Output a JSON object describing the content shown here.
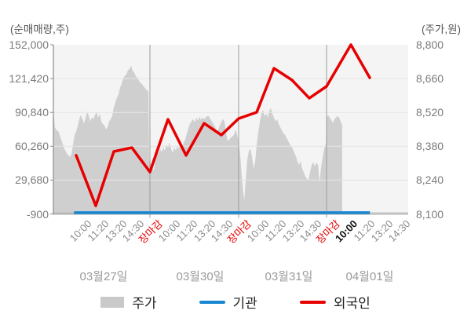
{
  "axes": {
    "left_title": "(순매매량,주)",
    "right_title": "(주가,원)",
    "left_ticks": [
      "152,000",
      "121,420",
      "90,840",
      "60,260",
      "29,680",
      "-900"
    ],
    "right_ticks": [
      "8,800",
      "8,660",
      "8,520",
      "8,380",
      "8,240",
      "8,100"
    ]
  },
  "x_axis": {
    "days": [
      {
        "date": "03월27일",
        "times": [
          "10:00",
          "11:20",
          "13:20",
          "14:30",
          "장마감"
        ]
      },
      {
        "date": "03월30일",
        "times": [
          "10:00",
          "11:20",
          "13:20",
          "14:30",
          "장마감"
        ]
      },
      {
        "date": "03월31일",
        "times": [
          "10:00",
          "11:20",
          "13:20",
          "14:30",
          "장마감"
        ]
      },
      {
        "date": "04월01일",
        "times": [
          "10:00",
          "11:20",
          "13:20",
          "14:30"
        ],
        "bold_time": "10:00"
      }
    ]
  },
  "legend": {
    "items": [
      {
        "label": "주가",
        "type": "area",
        "color": "#c9c9c9"
      },
      {
        "label": "기관",
        "type": "line",
        "color": "#1787d2"
      },
      {
        "label": "외국인",
        "type": "line",
        "color": "#e60000"
      }
    ]
  },
  "chart_data": {
    "type": "mixed",
    "grid": true,
    "left_axis": {
      "label": "(순매매량,주)",
      "unit": "주",
      "range": [
        -900,
        152000
      ],
      "ticks": [
        152000,
        121420,
        90840,
        60260,
        29680,
        -900
      ]
    },
    "right_axis": {
      "label": "(주가,원)",
      "unit": "원",
      "range": [
        8100,
        8800
      ],
      "ticks": [
        8800,
        8660,
        8520,
        8380,
        8240,
        8100
      ]
    },
    "day_boundaries_x": [
      0.2721,
      0.5221,
      0.7699
    ],
    "series": [
      {
        "name": "주가",
        "type": "area",
        "axis": "right",
        "color": "#cfcfcf",
        "points": [
          [
            0.0,
            8500
          ],
          [
            0.002,
            8505
          ],
          [
            0.004,
            8460
          ],
          [
            0.009,
            8447
          ],
          [
            0.015,
            8440
          ],
          [
            0.022,
            8408
          ],
          [
            0.031,
            8369
          ],
          [
            0.04,
            8346
          ],
          [
            0.046,
            8336
          ],
          [
            0.051,
            8346
          ],
          [
            0.055,
            8385
          ],
          [
            0.06,
            8427
          ],
          [
            0.064,
            8440
          ],
          [
            0.069,
            8466
          ],
          [
            0.073,
            8492
          ],
          [
            0.077,
            8509
          ],
          [
            0.082,
            8492
          ],
          [
            0.086,
            8473
          ],
          [
            0.091,
            8499
          ],
          [
            0.095,
            8522
          ],
          [
            0.1,
            8505
          ],
          [
            0.104,
            8483
          ],
          [
            0.108,
            8499
          ],
          [
            0.113,
            8492
          ],
          [
            0.117,
            8509
          ],
          [
            0.122,
            8522
          ],
          [
            0.126,
            8499
          ],
          [
            0.131,
            8515
          ],
          [
            0.135,
            8483
          ],
          [
            0.139,
            8473
          ],
          [
            0.144,
            8466
          ],
          [
            0.148,
            8450
          ],
          [
            0.153,
            8460
          ],
          [
            0.157,
            8483
          ],
          [
            0.162,
            8492
          ],
          [
            0.166,
            8505
          ],
          [
            0.17,
            8538
          ],
          [
            0.175,
            8564
          ],
          [
            0.179,
            8580
          ],
          [
            0.184,
            8597
          ],
          [
            0.188,
            8623
          ],
          [
            0.192,
            8636
          ],
          [
            0.197,
            8662
          ],
          [
            0.201,
            8671
          ],
          [
            0.206,
            8678
          ],
          [
            0.21,
            8694
          ],
          [
            0.215,
            8701
          ],
          [
            0.219,
            8714
          ],
          [
            0.223,
            8694
          ],
          [
            0.228,
            8684
          ],
          [
            0.232,
            8671
          ],
          [
            0.237,
            8662
          ],
          [
            0.241,
            8652
          ],
          [
            0.246,
            8642
          ],
          [
            0.25,
            8636
          ],
          [
            0.254,
            8629
          ],
          [
            0.259,
            8619
          ],
          [
            0.263,
            8613
          ],
          [
            0.268,
            8606
          ],
          [
            0.27,
            8320
          ],
          [
            0.274,
            8310
          ],
          [
            0.279,
            8294
          ],
          [
            0.283,
            8277
          ],
          [
            0.288,
            8336
          ],
          [
            0.292,
            8359
          ],
          [
            0.296,
            8349
          ],
          [
            0.301,
            8369
          ],
          [
            0.305,
            8356
          ],
          [
            0.31,
            8375
          ],
          [
            0.314,
            8362
          ],
          [
            0.319,
            8385
          ],
          [
            0.323,
            8375
          ],
          [
            0.327,
            8395
          ],
          [
            0.332,
            8369
          ],
          [
            0.336,
            8352
          ],
          [
            0.341,
            8375
          ],
          [
            0.345,
            8362
          ],
          [
            0.35,
            8382
          ],
          [
            0.354,
            8369
          ],
          [
            0.358,
            8388
          ],
          [
            0.363,
            8375
          ],
          [
            0.367,
            8395
          ],
          [
            0.372,
            8408
          ],
          [
            0.376,
            8434
          ],
          [
            0.381,
            8457
          ],
          [
            0.385,
            8473
          ],
          [
            0.389,
            8483
          ],
          [
            0.394,
            8492
          ],
          [
            0.398,
            8479
          ],
          [
            0.403,
            8499
          ],
          [
            0.407,
            8486
          ],
          [
            0.412,
            8502
          ],
          [
            0.416,
            8489
          ],
          [
            0.42,
            8499
          ],
          [
            0.425,
            8492
          ],
          [
            0.429,
            8499
          ],
          [
            0.434,
            8505
          ],
          [
            0.438,
            8505
          ],
          [
            0.442,
            8492
          ],
          [
            0.447,
            8483
          ],
          [
            0.451,
            8473
          ],
          [
            0.456,
            8460
          ],
          [
            0.46,
            8440
          ],
          [
            0.465,
            8450
          ],
          [
            0.469,
            8466
          ],
          [
            0.473,
            8479
          ],
          [
            0.478,
            8492
          ],
          [
            0.482,
            8483
          ],
          [
            0.487,
            8434
          ],
          [
            0.491,
            8401
          ],
          [
            0.496,
            8408
          ],
          [
            0.5,
            8414
          ],
          [
            0.504,
            8421
          ],
          [
            0.509,
            8427
          ],
          [
            0.513,
            8450
          ],
          [
            0.518,
            8427
          ],
          [
            0.522,
            8401
          ],
          [
            0.527,
            8336
          ],
          [
            0.531,
            8255
          ],
          [
            0.535,
            8190
          ],
          [
            0.538,
            8157
          ],
          [
            0.542,
            8238
          ],
          [
            0.546,
            8320
          ],
          [
            0.551,
            8362
          ],
          [
            0.555,
            8369
          ],
          [
            0.56,
            8336
          ],
          [
            0.564,
            8287
          ],
          [
            0.569,
            8320
          ],
          [
            0.573,
            8385
          ],
          [
            0.577,
            8434
          ],
          [
            0.582,
            8483
          ],
          [
            0.586,
            8515
          ],
          [
            0.591,
            8531
          ],
          [
            0.595,
            8505
          ],
          [
            0.6,
            8515
          ],
          [
            0.604,
            8499
          ],
          [
            0.608,
            8525
          ],
          [
            0.613,
            8538
          ],
          [
            0.617,
            8515
          ],
          [
            0.622,
            8499
          ],
          [
            0.626,
            8483
          ],
          [
            0.631,
            8492
          ],
          [
            0.635,
            8473
          ],
          [
            0.639,
            8460
          ],
          [
            0.644,
            8447
          ],
          [
            0.648,
            8434
          ],
          [
            0.653,
            8427
          ],
          [
            0.657,
            8414
          ],
          [
            0.662,
            8401
          ],
          [
            0.666,
            8388
          ],
          [
            0.67,
            8382
          ],
          [
            0.675,
            8369
          ],
          [
            0.679,
            8352
          ],
          [
            0.684,
            8336
          ],
          [
            0.688,
            8316
          ],
          [
            0.693,
            8303
          ],
          [
            0.697,
            8320
          ],
          [
            0.701,
            8287
          ],
          [
            0.706,
            8271
          ],
          [
            0.71,
            8255
          ],
          [
            0.715,
            8245
          ],
          [
            0.719,
            8238
          ],
          [
            0.723,
            8271
          ],
          [
            0.728,
            8303
          ],
          [
            0.732,
            8313
          ],
          [
            0.737,
            8297
          ],
          [
            0.741,
            8313
          ],
          [
            0.746,
            8303
          ],
          [
            0.75,
            8229
          ],
          [
            0.754,
            8287
          ],
          [
            0.759,
            8336
          ],
          [
            0.763,
            8369
          ],
          [
            0.768,
            8391
          ],
          [
            0.77,
            8499
          ],
          [
            0.774,
            8509
          ],
          [
            0.779,
            8499
          ],
          [
            0.783,
            8489
          ],
          [
            0.788,
            8476
          ],
          [
            0.792,
            8492
          ],
          [
            0.796,
            8499
          ],
          [
            0.801,
            8505
          ],
          [
            0.805,
            8499
          ],
          [
            0.81,
            8483
          ],
          [
            0.814,
            8466
          ]
        ]
      },
      {
        "name": "기관",
        "type": "line",
        "axis": "left",
        "color": "#1787d2",
        "points": [
          {
            "x": 0.058,
            "value": 0
          },
          {
            "x": 0.892,
            "value": 0
          }
        ]
      },
      {
        "name": "외국인",
        "type": "line",
        "axis": "left",
        "color": "#e60000",
        "points": [
          {
            "day": "03월27일",
            "time": "10:00",
            "x": 0.0642,
            "value": 52000
          },
          {
            "day": "03월27일",
            "time": "11:20",
            "x": 0.1195,
            "value": 6500
          },
          {
            "day": "03월27일",
            "time": "13:20",
            "x": 0.1704,
            "value": 55500
          },
          {
            "day": "03월27일",
            "time": "14:30",
            "x": 0.2212,
            "value": 59000
          },
          {
            "day": "03월27일",
            "time": "장마감",
            "x": 0.2721,
            "value": 37000
          },
          {
            "day": "03월30일",
            "time": "10:00",
            "x": 0.323,
            "value": 84600
          },
          {
            "day": "03월30일",
            "time": "11:20",
            "x": 0.3739,
            "value": 52000
          },
          {
            "day": "03월30일",
            "time": "13:20",
            "x": 0.4248,
            "value": 81000
          },
          {
            "day": "03월30일",
            "time": "14:30",
            "x": 0.4735,
            "value": 70400
          },
          {
            "day": "03월30일",
            "time": "장마감",
            "x": 0.5221,
            "value": 85300
          },
          {
            "day": "03월31일",
            "time": "10:00",
            "x": 0.573,
            "value": 91000
          },
          {
            "day": "03월31일",
            "time": "11:20",
            "x": 0.6217,
            "value": 130700
          },
          {
            "day": "03월31일",
            "time": "13:20",
            "x": 0.6726,
            "value": 120100
          },
          {
            "day": "03월31일",
            "time": "14:30",
            "x": 0.7212,
            "value": 103700
          },
          {
            "day": "03월31일",
            "time": "장마감",
            "x": 0.7699,
            "value": 114400
          },
          {
            "day": "04월01일",
            "time": "10:00",
            "x": 0.8385,
            "value": 152000
          },
          {
            "day": "04월01일",
            "time": "11:20",
            "x": 0.8916,
            "value": 122200
          }
        ]
      }
    ]
  }
}
